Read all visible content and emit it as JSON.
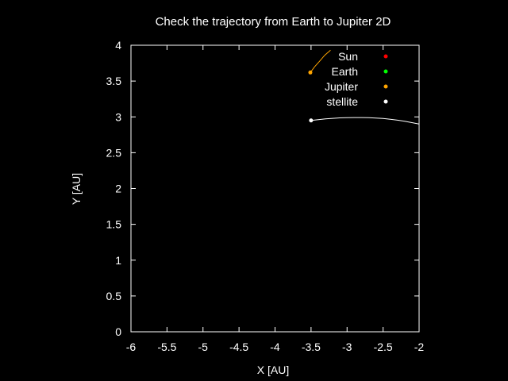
{
  "chart_data": {
    "type": "line",
    "title": "Check the trajectory from Earth to Jupiter 2D",
    "xlabel": "X [AU]",
    "ylabel": "Y [AU]",
    "xlim": [
      -6,
      -2
    ],
    "ylim": [
      0,
      4
    ],
    "xticks": [
      -6,
      -5.5,
      -5,
      -4.5,
      -4,
      -3.5,
      -3,
      -2.5,
      -2
    ],
    "xtick_labels": [
      "-6",
      "-5.5",
      "-5",
      "-4.5",
      "-4",
      "-3.5",
      "-3",
      "-2.5",
      "-2"
    ],
    "yticks": [
      0,
      0.5,
      1,
      1.5,
      2,
      2.5,
      3,
      3.5,
      4
    ],
    "ytick_labels": [
      "0",
      "0.5",
      "1",
      "1.5",
      "2",
      "2.5",
      "3",
      "3.5",
      "4"
    ],
    "grid": false,
    "legend_position": "top-right",
    "series": [
      {
        "name": "Sun",
        "color": "#ff0000",
        "marker": "dot",
        "x": [],
        "y": []
      },
      {
        "name": "Earth",
        "color": "#00ff00",
        "marker": "dot",
        "x": [],
        "y": []
      },
      {
        "name": "Jupiter",
        "color": "#ffa500",
        "marker": "dot",
        "x": [
          -3.51,
          -3.45,
          -3.38,
          -3.31,
          -3.23
        ],
        "y": [
          3.62,
          3.7,
          3.78,
          3.86,
          3.93
        ]
      },
      {
        "name": "stellite",
        "color": "#ffffff",
        "marker": "dot",
        "x": [
          -3.5,
          -3.4,
          -3.3,
          -3.2,
          -3.1,
          -3.0,
          -2.9,
          -2.8,
          -2.7,
          -2.6,
          -2.5,
          -2.4,
          -2.3,
          -2.2,
          -2.1,
          -2.0
        ],
        "y": [
          2.95,
          2.962,
          2.972,
          2.98,
          2.986,
          2.99,
          2.991,
          2.991,
          2.989,
          2.984,
          2.977,
          2.967,
          2.954,
          2.938,
          2.92,
          2.9
        ]
      }
    ]
  }
}
